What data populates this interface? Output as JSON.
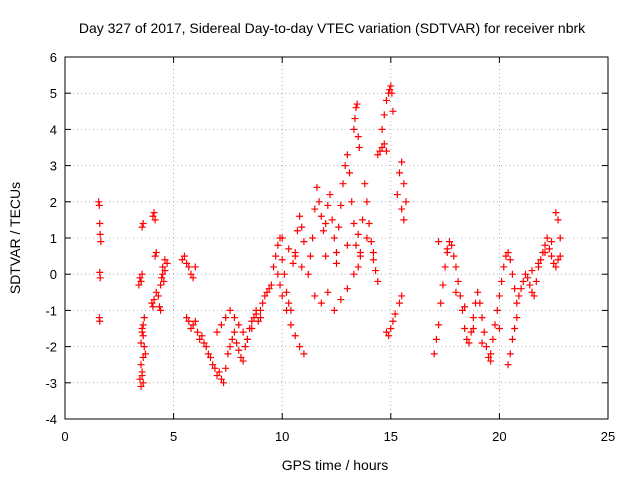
{
  "chart_data": {
    "type": "scatter",
    "title": "Day 327 of 2017, Sidereal Day-to-day VTEC variation (SDTVAR) for receiver nbrk",
    "xlabel": "GPS time / hours",
    "ylabel": "SDTVAR / TECUs",
    "xlim": [
      0,
      25
    ],
    "ylim": [
      -4,
      6
    ],
    "xticks": [
      "0",
      "5",
      "10",
      "15",
      "20",
      "25"
    ],
    "yticks": [
      "-4",
      "-3",
      "-2",
      "-1",
      "0",
      "1",
      "2",
      "3",
      "4",
      "5",
      "6"
    ],
    "grid": true,
    "marker": "plus",
    "color": "#ff0000",
    "series": [
      {
        "name": "SDTVAR",
        "x": [
          1.55,
          1.58,
          1.6,
          1.62,
          1.65,
          1.6,
          1.62,
          1.58,
          1.6,
          3.4,
          3.45,
          3.5,
          3.55,
          3.6,
          3.65,
          3.7,
          3.5,
          3.55,
          3.6,
          3.45,
          3.5,
          3.55,
          3.6,
          3.5,
          3.55,
          3.6,
          3.65,
          3.55,
          3.6,
          3.5,
          3.55,
          4.0,
          4.05,
          4.1,
          4.15,
          4.2,
          4.05,
          4.1,
          4.15,
          4.2,
          4.3,
          4.4,
          4.5,
          4.6,
          4.7,
          4.45,
          4.5,
          4.55,
          4.6,
          4.35,
          4.4,
          5.4,
          5.5,
          5.6,
          5.7,
          5.8,
          5.9,
          6.0,
          5.6,
          5.7,
          5.8,
          5.9,
          6.0,
          6.1,
          6.2,
          6.3,
          6.4,
          6.5,
          6.6,
          6.7,
          6.8,
          6.9,
          7.0,
          7.1,
          7.2,
          7.3,
          7.4,
          7.5,
          7.6,
          7.7,
          7.8,
          7.9,
          8.0,
          8.1,
          8.2,
          8.3,
          8.4,
          8.5,
          8.6,
          8.7,
          8.8,
          8.9,
          9.0,
          9.1,
          9.2,
          9.3,
          9.4,
          7.0,
          7.2,
          7.4,
          7.6,
          7.8,
          8.0,
          8.2,
          8.4,
          8.6,
          8.8,
          9.0,
          9.5,
          9.6,
          9.7,
          9.8,
          9.9,
          10.0,
          10.1,
          10.2,
          10.3,
          10.4,
          10.5,
          10.6,
          10.7,
          10.8,
          10.9,
          11.0,
          9.8,
          9.9,
          10.0,
          10.2,
          10.4,
          10.6,
          10.8,
          11.0,
          10.0,
          10.3,
          10.6,
          10.9,
          11.2,
          11.3,
          11.4,
          11.5,
          11.6,
          11.7,
          11.8,
          11.9,
          12.0,
          12.1,
          12.2,
          12.3,
          12.4,
          12.5,
          12.6,
          12.7,
          12.8,
          12.9,
          13.0,
          13.1,
          13.2,
          13.3,
          13.4,
          13.5,
          13.6,
          13.7,
          13.8,
          13.9,
          14.0,
          14.1,
          14.2,
          14.3,
          14.4,
          11.5,
          11.8,
          12.1,
          12.4,
          12.7,
          13.0,
          13.3,
          13.6,
          13.9,
          14.2,
          12.0,
          12.5,
          13.0,
          13.5,
          13.3,
          13.35,
          13.4,
          13.45,
          13.5,
          13.55,
          14.4,
          14.5,
          14.6,
          14.7,
          14.8,
          14.6,
          14.7,
          14.8,
          14.9,
          14.95,
          15.0,
          15.05,
          15.1,
          14.8,
          14.9,
          15.0,
          15.1,
          15.2,
          15.3,
          15.4,
          15.5,
          15.6,
          15.7,
          15.5,
          15.6,
          15.4,
          15.5,
          17.0,
          17.1,
          17.2,
          17.3,
          17.4,
          17.5,
          17.6,
          17.7,
          17.8,
          17.9,
          18.0,
          18.1,
          18.2,
          18.3,
          18.4,
          18.5,
          18.6,
          18.7,
          18.8,
          18.9,
          19.0,
          19.1,
          19.2,
          19.3,
          19.4,
          19.5,
          19.6,
          19.7,
          19.8,
          19.9,
          20.0,
          20.1,
          20.2,
          20.3,
          20.4,
          20.5,
          20.6,
          20.7,
          20.8,
          17.2,
          17.6,
          18.0,
          18.4,
          18.8,
          19.2,
          19.6,
          20.0,
          20.4,
          20.5,
          20.6,
          20.7,
          20.8,
          20.9,
          21.0,
          21.1,
          21.2,
          21.3,
          21.4,
          21.5,
          21.6,
          21.7,
          21.8,
          21.9,
          22.0,
          22.1,
          22.2,
          22.3,
          22.4,
          22.5,
          22.6,
          22.7,
          22.8,
          21.5,
          21.8,
          22.1,
          22.4,
          22.6,
          22.7,
          22.8
        ],
        "y": [
          2.0,
          1.9,
          1.4,
          1.1,
          0.9,
          0.05,
          -0.1,
          -1.2,
          -1.3,
          -0.3,
          -0.1,
          -0.2,
          -1.5,
          -1.7,
          -2.0,
          -2.2,
          -2.5,
          -2.8,
          -3.0,
          -2.9,
          -3.1,
          -2.7,
          -2.3,
          -1.9,
          -1.6,
          -1.4,
          -1.2,
          1.3,
          1.4,
          -0.2,
          0.0,
          -0.8,
          -0.9,
          -0.7,
          0.5,
          0.6,
          1.6,
          1.7,
          1.5,
          -0.5,
          -0.6,
          -0.3,
          0.2,
          0.4,
          0.3,
          -0.1,
          0.0,
          -0.2,
          0.1,
          -0.9,
          -1.0,
          0.4,
          0.5,
          0.3,
          0.2,
          0.0,
          -0.1,
          0.2,
          -1.2,
          -1.3,
          -1.5,
          -1.4,
          -1.3,
          -1.6,
          -1.8,
          -1.7,
          -1.9,
          -2.0,
          -2.2,
          -2.3,
          -2.5,
          -2.6,
          -2.8,
          -2.7,
          -2.9,
          -3.0,
          -2.6,
          -2.2,
          -2.0,
          -1.8,
          -1.6,
          -1.9,
          -2.1,
          -2.3,
          -2.4,
          -2.0,
          -1.8,
          -1.5,
          -1.3,
          -1.2,
          -1.1,
          -1.3,
          -1.0,
          -0.8,
          -0.6,
          -0.5,
          -0.4,
          -1.6,
          -1.4,
          -1.2,
          -1.0,
          -1.2,
          -1.4,
          -1.6,
          -1.8,
          -1.5,
          -1.0,
          -1.2,
          -0.3,
          0.2,
          0.5,
          0.8,
          1.0,
          0.4,
          0.0,
          -0.5,
          -0.8,
          -1.0,
          0.3,
          0.6,
          1.2,
          1.6,
          1.3,
          0.9,
          0.0,
          -0.3,
          -0.6,
          -1.0,
          -1.4,
          -1.7,
          -2.0,
          -2.2,
          1.0,
          0.7,
          0.5,
          0.2,
          0.0,
          0.5,
          1.0,
          1.8,
          2.4,
          2.0,
          1.6,
          1.2,
          0.5,
          1.9,
          2.2,
          1.5,
          1.0,
          0.6,
          1.3,
          1.9,
          2.5,
          3.0,
          3.3,
          2.8,
          2.0,
          1.4,
          0.8,
          0.2,
          0.6,
          1.5,
          2.5,
          2.0,
          1.4,
          0.9,
          0.4,
          0.1,
          -0.2,
          -0.6,
          -0.8,
          -0.5,
          -1.0,
          -0.7,
          -0.4,
          0.0,
          0.5,
          1.0,
          0.6,
          1.4,
          0.3,
          0.8,
          1.1,
          4.0,
          4.3,
          4.6,
          4.7,
          3.8,
          3.5,
          3.3,
          3.4,
          3.5,
          3.6,
          3.4,
          4.0,
          4.4,
          4.8,
          5.0,
          5.1,
          5.2,
          5.0,
          4.5,
          -1.6,
          -1.7,
          -1.5,
          -1.3,
          -1.1,
          2.2,
          2.8,
          3.1,
          2.5,
          2.0,
          1.8,
          1.5,
          -0.8,
          -0.6,
          -2.2,
          -1.8,
          -1.4,
          -0.8,
          -0.3,
          0.2,
          0.6,
          0.9,
          0.8,
          0.5,
          0.2,
          -0.2,
          -0.6,
          -1.0,
          -1.5,
          -1.8,
          -1.9,
          -1.6,
          -1.2,
          -0.8,
          -0.5,
          -0.8,
          -1.2,
          -1.6,
          -2.0,
          -2.3,
          -2.2,
          -1.8,
          -1.4,
          -1.0,
          -0.6,
          -0.2,
          0.2,
          0.5,
          0.6,
          0.4,
          0.0,
          -0.4,
          -0.8,
          0.9,
          0.7,
          -0.5,
          -0.9,
          -1.5,
          -1.9,
          -2.4,
          -1.5,
          -2.5,
          -2.2,
          -1.8,
          -1.5,
          -1.2,
          -0.6,
          -0.4,
          -0.2,
          0.0,
          -0.1,
          -0.3,
          -0.5,
          -0.6,
          -0.2,
          0.2,
          0.4,
          0.6,
          0.8,
          1.0,
          0.7,
          0.5,
          0.3,
          0.2,
          0.4,
          0.5,
          0.1,
          0.3,
          0.6,
          0.9,
          1.7,
          1.5,
          1.0
        ]
      }
    ]
  }
}
